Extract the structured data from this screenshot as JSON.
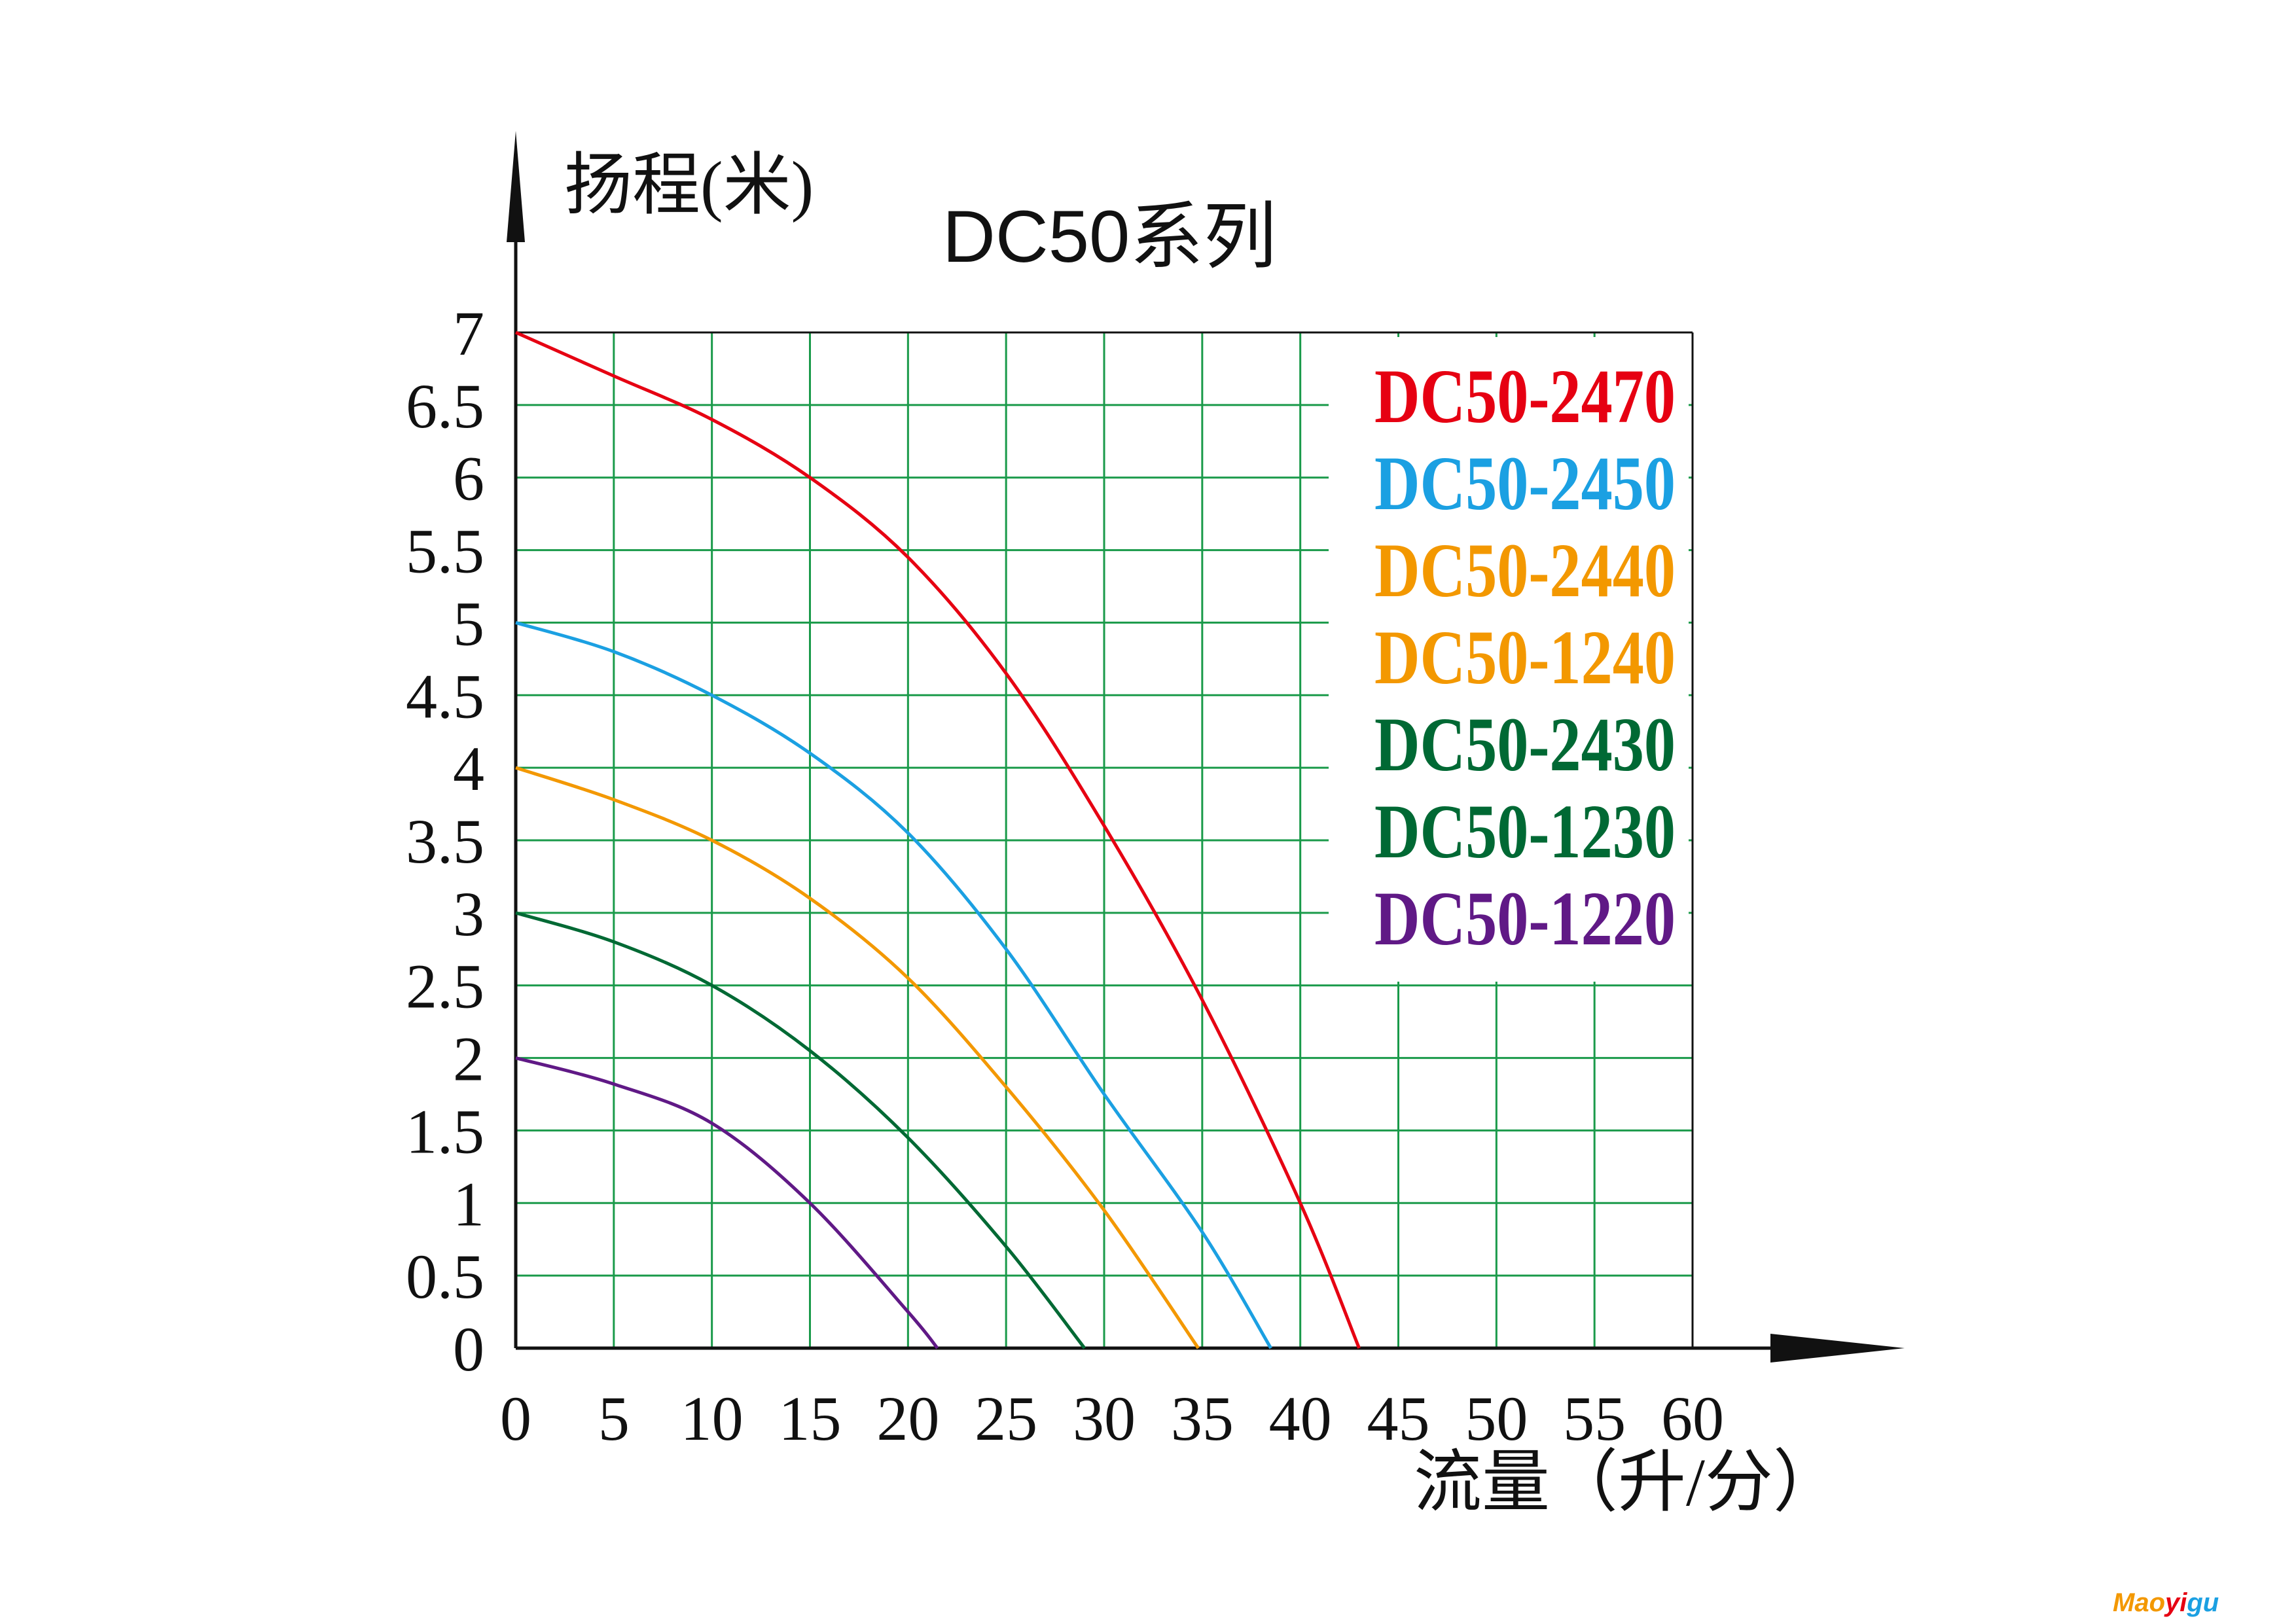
{
  "chart_data": {
    "type": "line",
    "title": "DC50系列",
    "xlabel": "流量（升/分）",
    "ylabel": "扬程(米)",
    "xlim": [
      0,
      60
    ],
    "ylim": [
      0,
      7
    ],
    "x_ticks": [
      "0",
      "5",
      "10",
      "15",
      "20",
      "25",
      "30",
      "35",
      "40",
      "45",
      "50",
      "55",
      "60"
    ],
    "y_ticks": [
      "0",
      "0.5",
      "1",
      "1.5",
      "2",
      "2.5",
      "3",
      "3.5",
      "4",
      "4.5",
      "5",
      "5.5",
      "6",
      "6.5",
      "7"
    ],
    "grid": true,
    "grid_color": "#1a9a4a",
    "legend_position": "top-right",
    "legend": [
      {
        "label": "DC50-2470",
        "color": "#e60012"
      },
      {
        "label": "DC50-2450",
        "color": "#1ba0e2"
      },
      {
        "label": "DC50-2440",
        "color": "#f39800"
      },
      {
        "label": "DC50-1240",
        "color": "#f39800"
      },
      {
        "label": "DC50-2430",
        "color": "#006934"
      },
      {
        "label": "DC50-1230",
        "color": "#006934"
      },
      {
        "label": "DC50-1220",
        "color": "#601986"
      }
    ],
    "series": [
      {
        "color": "#e60012",
        "x": [
          0,
          5,
          10,
          15,
          20,
          25,
          30,
          35,
          40,
          43
        ],
        "y": [
          7,
          6.7,
          6.4,
          6.0,
          5.45,
          4.65,
          3.6,
          2.4,
          1.0,
          0
        ]
      },
      {
        "color": "#1ba0e2",
        "x": [
          0,
          5,
          10,
          15,
          20,
          25,
          30,
          35,
          38.5
        ],
        "y": [
          5,
          4.8,
          4.5,
          4.1,
          3.55,
          2.75,
          1.75,
          0.8,
          0
        ]
      },
      {
        "color": "#f39800",
        "x": [
          0,
          5,
          10,
          15,
          20,
          25,
          30,
          34.8
        ],
        "y": [
          4,
          3.78,
          3.5,
          3.1,
          2.55,
          1.8,
          0.95,
          0
        ]
      },
      {
        "color": "#006934",
        "x": [
          0,
          5,
          10,
          15,
          20,
          25,
          29
        ],
        "y": [
          3,
          2.8,
          2.5,
          2.05,
          1.45,
          0.7,
          0
        ]
      },
      {
        "color": "#601986",
        "x": [
          0,
          5,
          10,
          15,
          20,
          21.5
        ],
        "y": [
          2,
          1.82,
          1.55,
          1.0,
          0.25,
          0
        ]
      }
    ]
  },
  "watermark": {
    "text": "Maoyigu",
    "colors": [
      "#f39800",
      "#e60012",
      "#1ba0e2"
    ]
  }
}
